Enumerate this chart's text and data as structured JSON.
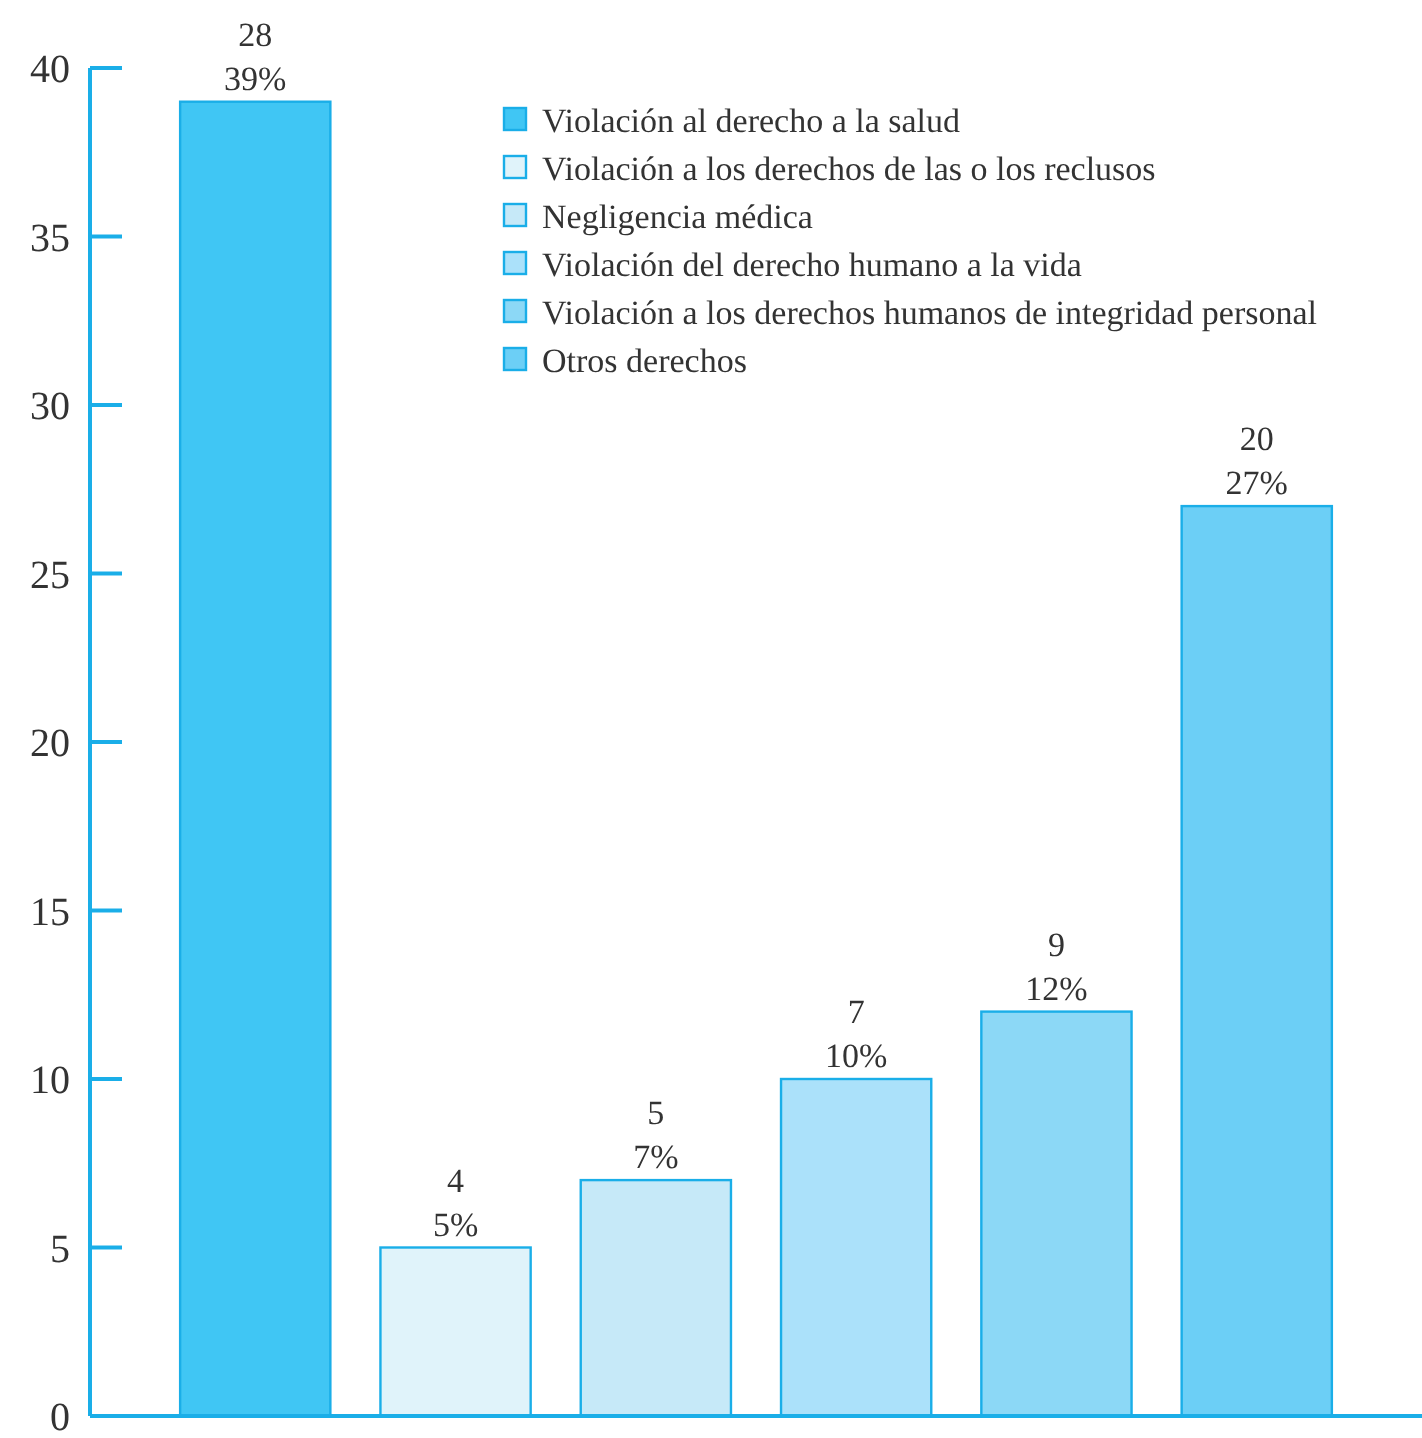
{
  "chart_data": {
    "type": "bar",
    "categories": [
      null,
      null,
      null,
      null,
      null,
      null
    ],
    "series": [
      {
        "name": "Violación al derecho a la salud",
        "color": "#40c6f4",
        "values": [
          39,
          null,
          null,
          null,
          null,
          null
        ],
        "value_labels": [
          "28\n39%",
          null,
          null,
          null,
          null,
          null
        ]
      },
      {
        "name": "Violación a los derechos de las o los reclusos",
        "color": "#e0f3fa",
        "values": [
          null,
          5,
          null,
          null,
          null,
          null
        ],
        "value_labels": [
          null,
          "4\n5%",
          null,
          null,
          null,
          null
        ]
      },
      {
        "name": "Negligencia médica",
        "color": "#c6e9f8",
        "values": [
          null,
          null,
          7,
          null,
          null,
          null
        ],
        "value_labels": [
          null,
          null,
          "5\n7%",
          null,
          null,
          null
        ]
      },
      {
        "name": "Violación del derecho humano a la vida",
        "color": "#abe1fa",
        "values": [
          null,
          null,
          null,
          10,
          null,
          null
        ],
        "value_labels": [
          null,
          null,
          null,
          "7\n10%",
          null,
          null
        ]
      },
      {
        "name": "Violación a los derechos humanos de integridad personal",
        "color": "#8cd8f6",
        "values": [
          null,
          null,
          null,
          null,
          12,
          null
        ],
        "value_labels": [
          null,
          null,
          null,
          null,
          "9\n12%",
          null
        ]
      },
      {
        "name": "Otros derechos",
        "color": "#6ccff6",
        "values": [
          null,
          null,
          null,
          null,
          null,
          27
        ],
        "value_labels": [
          null,
          null,
          null,
          null,
          null,
          "20\n27%"
        ]
      }
    ],
    "ylim": [
      0,
      40
    ],
    "yticks": [
      0,
      5,
      10,
      15,
      20,
      25,
      30,
      35,
      40
    ],
    "legend": "top",
    "tick_labels": "y"
  }
}
